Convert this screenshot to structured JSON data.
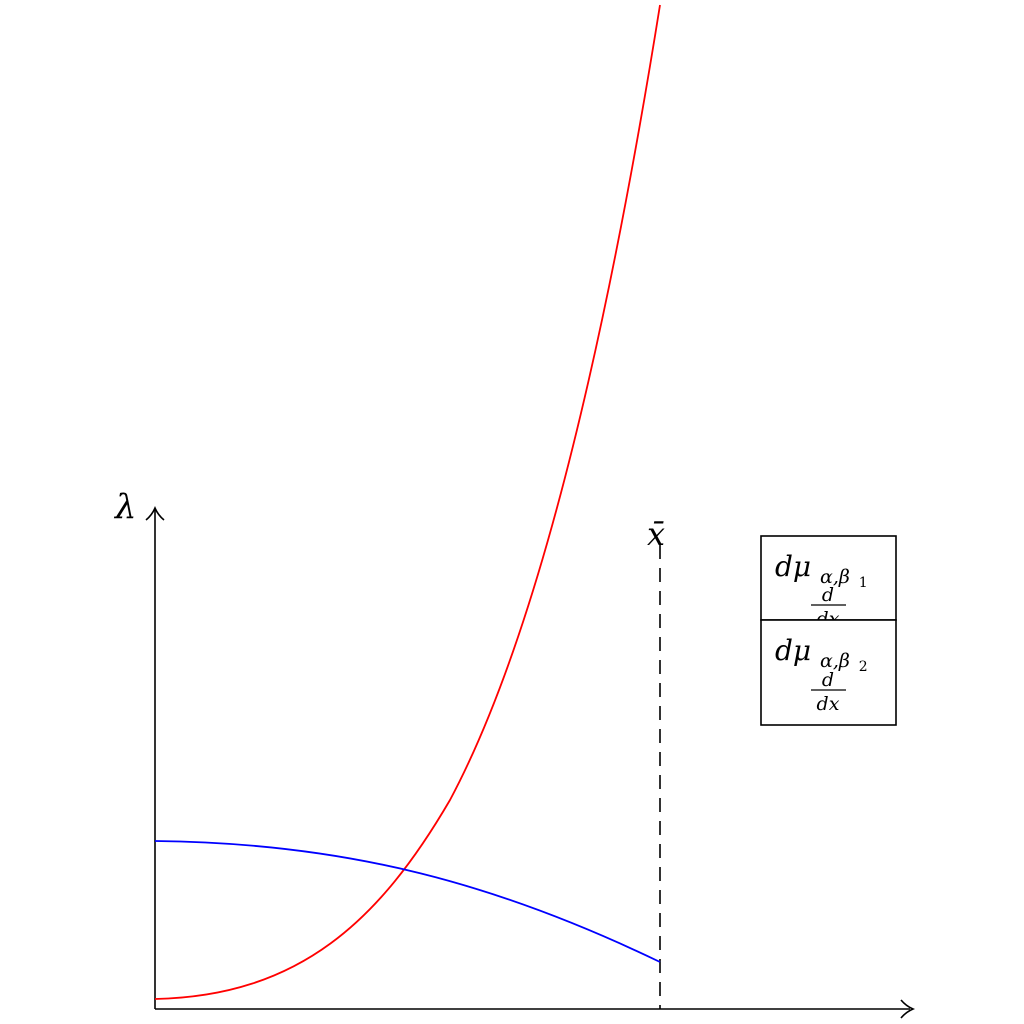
{
  "diagram": {
    "y_axis_label": "λ",
    "marker_label": "x̄",
    "legend": [
      {
        "main": "dμ",
        "subscript": "α,β",
        "index": "1",
        "frac_num": "d",
        "frac_den": "dx"
      },
      {
        "main": "dμ",
        "subscript": "α,β",
        "index": "2",
        "frac_num": "d",
        "frac_den": "dx"
      }
    ],
    "colors": {
      "curve_1": "#ff0000",
      "curve_2": "#0000ff",
      "axes": "#000000",
      "marker_line": "#000000"
    }
  }
}
